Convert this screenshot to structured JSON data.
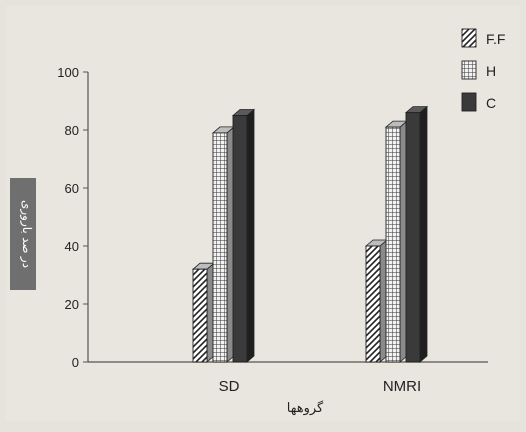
{
  "chart_data": {
    "type": "bar",
    "style": "3d",
    "categories": [
      "SD",
      "NMRI"
    ],
    "series": [
      {
        "name": "F.F",
        "values": [
          32,
          40
        ],
        "color": "#ffffff",
        "pattern": "diagonal-hatch"
      },
      {
        "name": "H",
        "values": [
          79,
          81
        ],
        "color": "#cfcfcf",
        "pattern": "grid"
      },
      {
        "name": "C",
        "values": [
          85,
          86
        ],
        "color": "#3a3a3a",
        "pattern": "solid"
      }
    ],
    "title": "",
    "xlabel": "گروهها",
    "ylabel": "در صد باروری",
    "ylim": [
      0,
      100
    ],
    "yticks": [
      "0",
      "20",
      "40",
      "60",
      "80",
      "100"
    ],
    "grid": false,
    "legend_position": "top-right"
  }
}
